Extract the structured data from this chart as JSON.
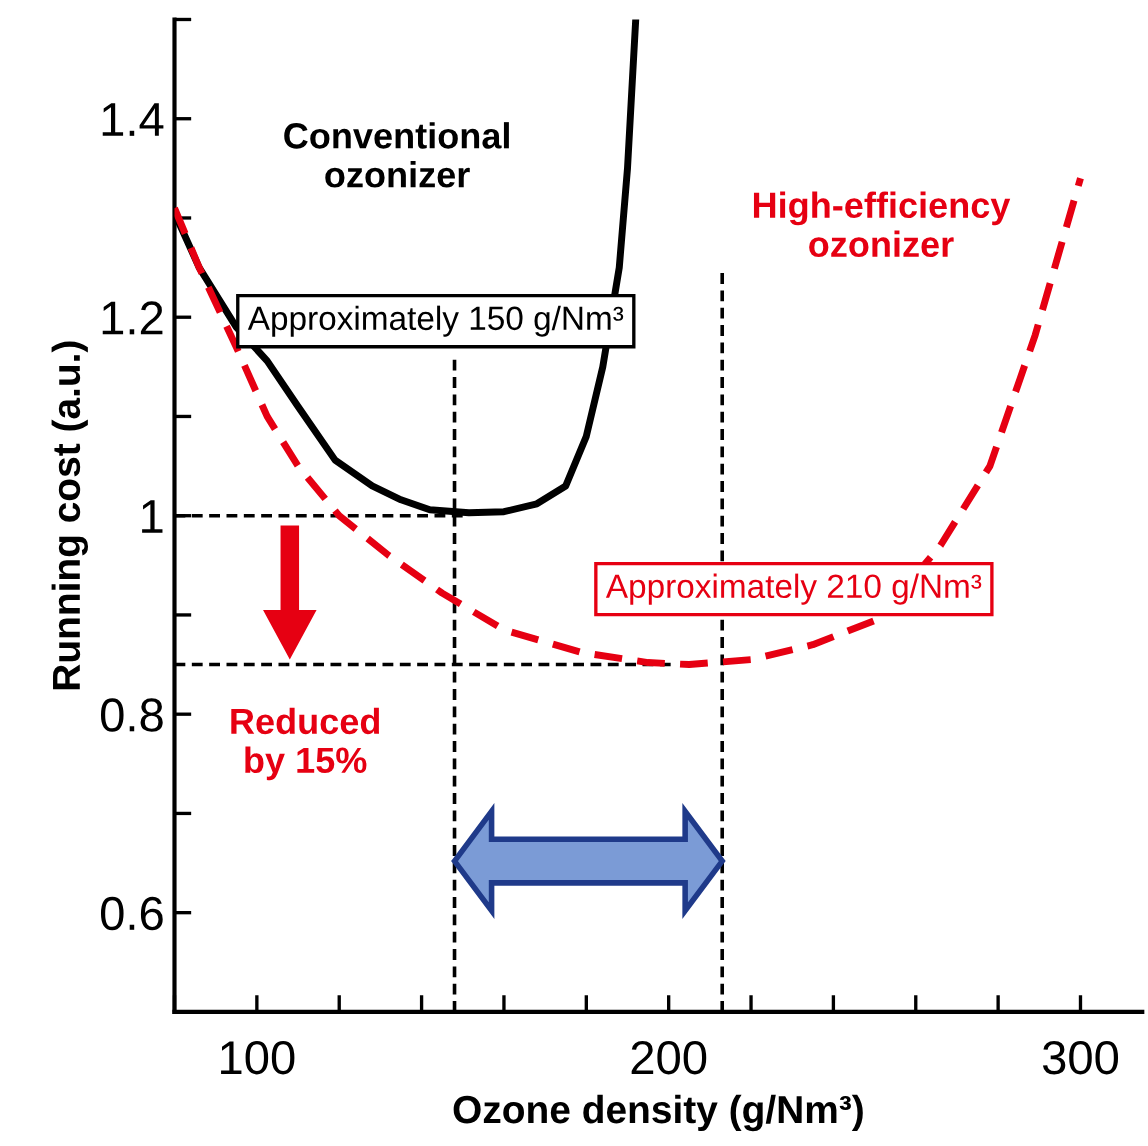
{
  "chart_data": {
    "type": "line",
    "xlabel": "Ozone density (g/Nm³)",
    "ylabel": "Running cost (a.u.)",
    "xlim": [
      80,
      315
    ],
    "ylim": [
      0.5,
      1.5
    ],
    "xticks": [
      {
        "value": 80,
        "label": null
      },
      100,
      {
        "value": 120,
        "label": null
      },
      {
        "value": 140,
        "label": null
      },
      {
        "value": 160,
        "label": null
      },
      {
        "value": 180,
        "label": null
      },
      200,
      {
        "value": 220,
        "label": null
      },
      {
        "value": 240,
        "label": null
      },
      {
        "value": 260,
        "label": null
      },
      {
        "value": 280,
        "label": null
      },
      300
    ],
    "yticks": [
      {
        "value": 0.5,
        "label": null
      },
      0.6,
      {
        "value": 0.7,
        "label": null
      },
      0.8,
      {
        "value": 0.9,
        "label": null
      },
      1,
      {
        "value": 1.1,
        "label": null
      },
      1.2,
      {
        "value": 1.3,
        "label": null
      },
      1.4,
      {
        "value": 1.5,
        "label": null
      }
    ],
    "grid": false,
    "legend": false,
    "series": [
      {
        "name": "Conventional\nozonizer",
        "color": "#000000",
        "line_style": "solid",
        "x": [
          80,
          86,
          95,
          102.5,
          110,
          119,
          128,
          135,
          142,
          151.5,
          160,
          168,
          175,
          180,
          184,
          188,
          190,
          192
        ],
        "values": [
          1.305,
          1.25,
          1.19,
          1.156,
          1.11,
          1.056,
          1.03,
          1.016,
          1.006,
          1.003,
          1.004,
          1.012,
          1.03,
          1.08,
          1.15,
          1.25,
          1.35,
          1.5
        ]
      },
      {
        "name": "High-efficiency\nozonizer",
        "color": "#e60012",
        "line_style": "dashed",
        "x": [
          80,
          86,
          95,
          102.5,
          110,
          120,
          132,
          145,
          160,
          179,
          195,
          205,
          220,
          235,
          251,
          266,
          278,
          289,
          300
        ],
        "values": [
          1.31,
          1.25,
          1.17,
          1.1,
          1.05,
          1.0,
          0.96,
          0.922,
          0.885,
          0.862,
          0.852,
          0.85,
          0.855,
          0.87,
          0.896,
          0.97,
          1.05,
          1.182,
          1.34
        ]
      },
      {
        "color": "#000000",
        "line_style": "dashed",
        "x": [
          148,
          148
        ],
        "values": [
          0.5,
          1.16
        ]
      },
      {
        "color": "#000000",
        "line_style": "dashed",
        "x": [
          213,
          213
        ],
        "values": [
          0.5,
          1.25
        ]
      },
      {
        "color": "#000000",
        "line_style": "dashed",
        "x": [
          80,
          150
        ],
        "values": [
          1.0,
          1.0
        ]
      },
      {
        "color": "#000000",
        "line_style": "dashed",
        "x": [
          80,
          202
        ],
        "values": [
          0.85,
          0.85
        ]
      }
    ],
    "annotations": [
      "Approximately 150 g/Nm³",
      "Approximately 210 g/Nm³",
      "Reduced\nby 15%"
    ]
  }
}
